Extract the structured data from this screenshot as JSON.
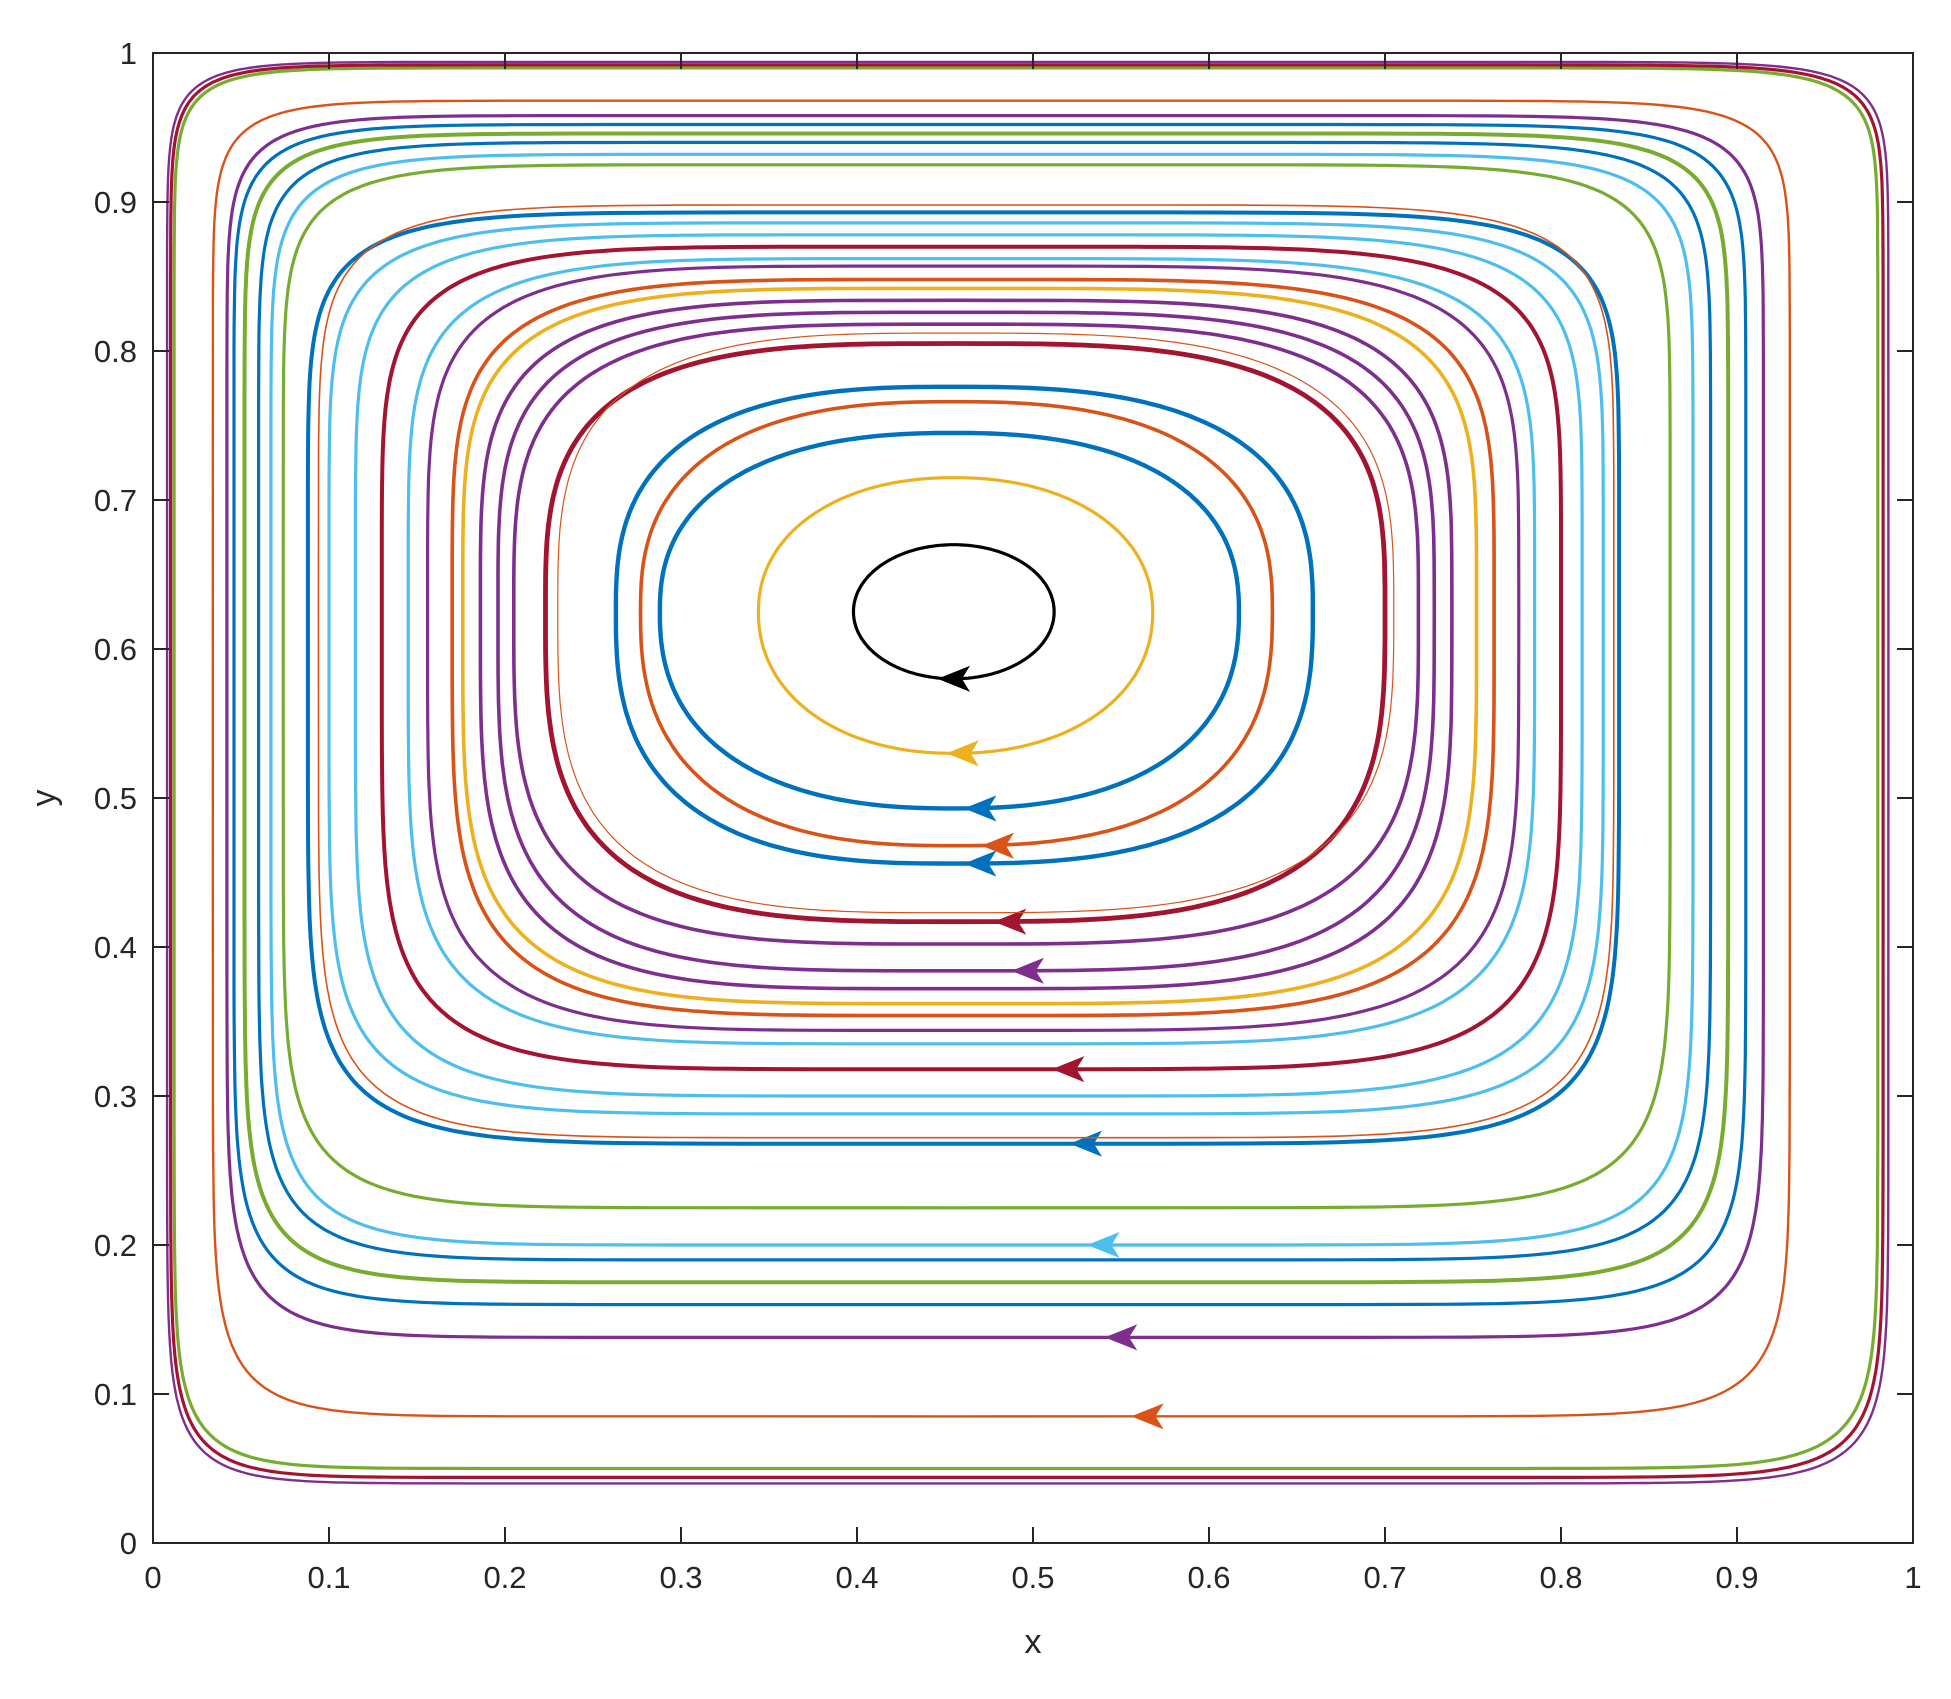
{
  "chart_data": {
    "type": "line",
    "title": "",
    "xlabel": "x",
    "ylabel": "y",
    "xlim": [
      0,
      1
    ],
    "ylim": [
      0,
      1
    ],
    "xticks": [
      "0",
      "0.1",
      "0.2",
      "0.3",
      "0.4",
      "0.5",
      "0.6",
      "0.7",
      "0.8",
      "0.9",
      "1"
    ],
    "yticks": [
      "0",
      "0.1",
      "0.2",
      "0.3",
      "0.4",
      "0.5",
      "0.6",
      "0.7",
      "0.8",
      "0.9",
      "1"
    ],
    "grid": false,
    "legend": "none",
    "center": [
      0.455,
      0.625
    ],
    "streamlines": [
      {
        "color": "#000000",
        "x_range": [
          0.398,
          0.512
        ],
        "y_range": [
          0.58,
          0.67
        ],
        "arrow": [
          0.455,
          0.58
        ],
        "width": 3.2
      },
      {
        "color": "#EDB120",
        "x_range": [
          0.344,
          0.568
        ],
        "y_range": [
          0.53,
          0.715
        ],
        "arrow": [
          0.46,
          0.53
        ],
        "width": 3.2
      },
      {
        "color": "#0072BD",
        "x_range": [
          0.288,
          0.617
        ],
        "y_range": [
          0.493,
          0.745
        ],
        "arrow": [
          0.47,
          0.493
        ],
        "width": 4.4
      },
      {
        "color": "#D95319",
        "x_range": [
          0.277,
          0.636
        ],
        "y_range": [
          0.468,
          0.766
        ],
        "arrow": [
          0.48,
          0.468
        ],
        "width": 3.6
      },
      {
        "color": "#0072BD",
        "x_range": [
          0.263,
          0.659
        ],
        "y_range": [
          0.456,
          0.776
        ],
        "arrow": [
          0.47,
          0.456
        ],
        "width": 4.4
      },
      {
        "color": "#A2142F",
        "x_range": [
          0.223,
          0.7
        ],
        "y_range": [
          0.417,
          0.805
        ],
        "arrow": [
          0.487,
          0.417
        ],
        "width": 4.8
      },
      {
        "color": "#D95319",
        "x_range": [
          0.23,
          0.705
        ],
        "y_range": [
          0.423,
          0.812
        ],
        "arrow": null,
        "width": 1.2
      },
      {
        "color": "#7E2F8E",
        "x_range": [
          0.205,
          0.719
        ],
        "y_range": [
          0.402,
          0.818
        ],
        "arrow": null,
        "width": 3.6
      },
      {
        "color": "#7E2F8E",
        "x_range": [
          0.196,
          0.728
        ],
        "y_range": [
          0.384,
          0.826
        ],
        "arrow": [
          0.497,
          0.384
        ],
        "width": 3.6
      },
      {
        "color": "#7E2F8E",
        "x_range": [
          0.186,
          0.738
        ],
        "y_range": [
          0.372,
          0.834
        ],
        "arrow": null,
        "width": 3.6
      },
      {
        "color": "#EDB120",
        "x_range": [
          0.176,
          0.752
        ],
        "y_range": [
          0.362,
          0.842
        ],
        "arrow": null,
        "width": 3.6
      },
      {
        "color": "#D95319",
        "x_range": [
          0.17,
          0.762
        ],
        "y_range": [
          0.354,
          0.848
        ],
        "arrow": null,
        "width": 3.6
      },
      {
        "color": "#7E2F8E",
        "x_range": [
          0.156,
          0.776
        ],
        "y_range": [
          0.344,
          0.857
        ],
        "arrow": null,
        "width": 3.2
      },
      {
        "color": "#4DBEEE",
        "x_range": [
          0.145,
          0.785
        ],
        "y_range": [
          0.335,
          0.862
        ],
        "arrow": null,
        "width": 3.2
      },
      {
        "color": "#A2142F",
        "x_range": [
          0.13,
          0.8
        ],
        "y_range": [
          0.318,
          0.87
        ],
        "arrow": [
          0.52,
          0.318
        ],
        "width": 4.0
      },
      {
        "color": "#4DBEEE",
        "x_range": [
          0.115,
          0.812
        ],
        "y_range": [
          0.3,
          0.878
        ],
        "arrow": null,
        "width": 3.2
      },
      {
        "color": "#4DBEEE",
        "x_range": [
          0.1,
          0.824
        ],
        "y_range": [
          0.288,
          0.886
        ],
        "arrow": null,
        "width": 3.2
      },
      {
        "color": "#0072BD",
        "x_range": [
          0.088,
          0.833
        ],
        "y_range": [
          0.268,
          0.893
        ],
        "arrow": [
          0.53,
          0.268
        ],
        "width": 4.0
      },
      {
        "color": "#D95319",
        "x_range": [
          0.094,
          0.83
        ],
        "y_range": [
          0.272,
          0.898
        ],
        "arrow": null,
        "width": 1.6
      },
      {
        "color": "#77AC30",
        "x_range": [
          0.074,
          0.862
        ],
        "y_range": [
          0.225,
          0.925
        ],
        "arrow": null,
        "width": 3.2
      },
      {
        "color": "#4DBEEE",
        "x_range": [
          0.067,
          0.875
        ],
        "y_range": [
          0.2,
          0.932
        ],
        "arrow": [
          0.54,
          0.2
        ],
        "width": 3.2
      },
      {
        "color": "#0072BD",
        "x_range": [
          0.06,
          0.885
        ],
        "y_range": [
          0.19,
          0.94
        ],
        "arrow": null,
        "width": 3.2
      },
      {
        "color": "#77AC30",
        "x_range": [
          0.052,
          0.895
        ],
        "y_range": [
          0.175,
          0.946
        ],
        "arrow": null,
        "width": 4.0
      },
      {
        "color": "#0072BD",
        "x_range": [
          0.046,
          0.905
        ],
        "y_range": [
          0.16,
          0.952
        ],
        "arrow": null,
        "width": 3.2
      },
      {
        "color": "#7E2F8E",
        "x_range": [
          0.042,
          0.915
        ],
        "y_range": [
          0.138,
          0.958
        ],
        "arrow": [
          0.55,
          0.138
        ],
        "width": 3.2
      },
      {
        "color": "#D95319",
        "x_range": [
          0.034,
          0.93
        ],
        "y_range": [
          0.085,
          0.968
        ],
        "arrow": [
          0.565,
          0.085
        ],
        "width": 2.4
      },
      {
        "color": "#77AC30",
        "x_range": [
          0.012,
          0.98
        ],
        "y_range": [
          0.05,
          0.99
        ],
        "arrow": null,
        "width": 3.2
      },
      {
        "color": "#A2142F",
        "x_range": [
          0.01,
          0.983
        ],
        "y_range": [
          0.044,
          0.992
        ],
        "arrow": null,
        "width": 3.2
      },
      {
        "color": "#7E2F8E",
        "x_range": [
          0.008,
          0.986
        ],
        "y_range": [
          0.04,
          0.994
        ],
        "arrow": null,
        "width": 2.4
      }
    ]
  }
}
